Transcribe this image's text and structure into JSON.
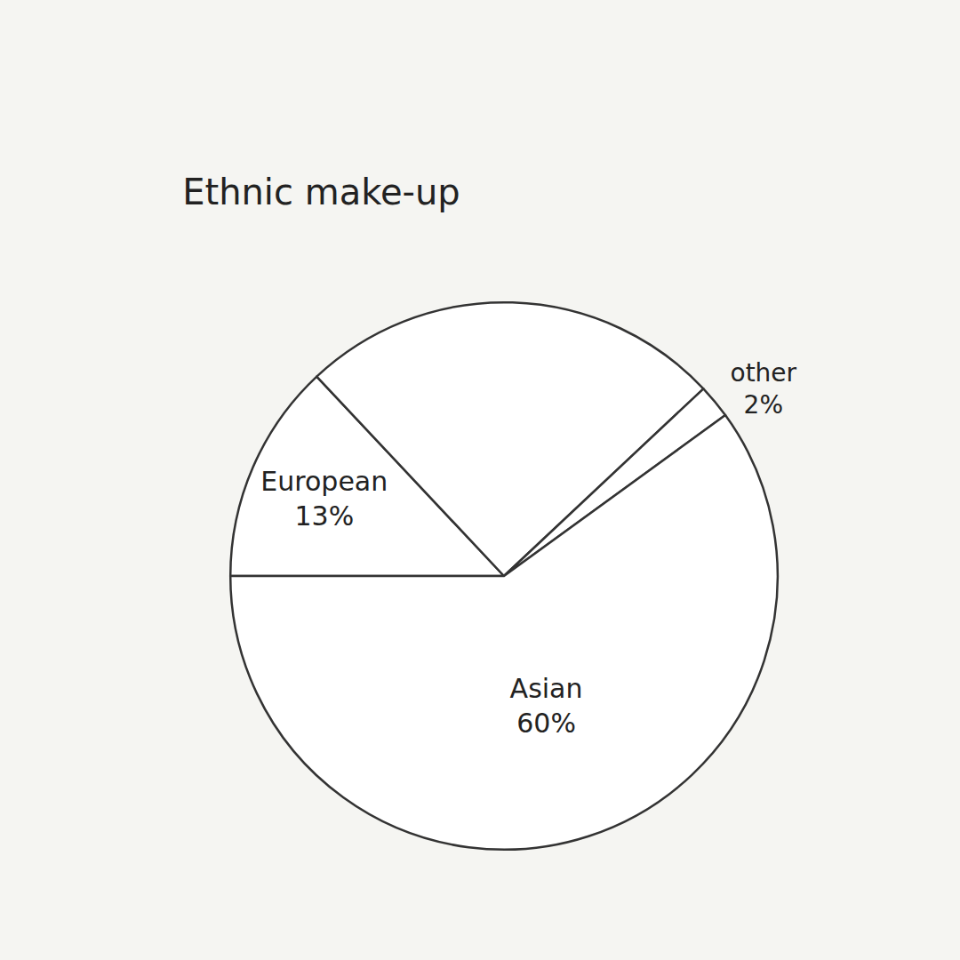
{
  "chart_data": {
    "type": "pie",
    "title": "Ethnic make-up",
    "categories": [
      "European",
      null,
      "other",
      "Asian"
    ],
    "values": [
      13,
      25,
      2,
      60
    ],
    "value_labels": [
      "13%",
      null,
      "2%",
      "60%"
    ],
    "data_labels": true,
    "color": "#ffffff"
  }
}
